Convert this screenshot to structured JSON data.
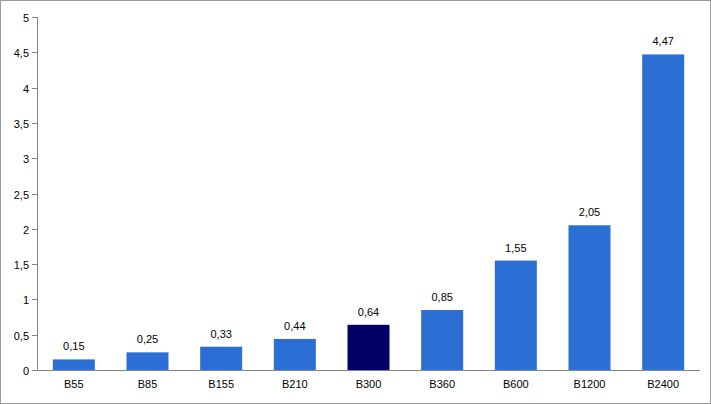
{
  "chart_data": {
    "type": "bar",
    "categories": [
      "B55",
      "B85",
      "B155",
      "B210",
      "B300",
      "B360",
      "B600",
      "B1200",
      "B2400"
    ],
    "values": [
      0.15,
      0.25,
      0.33,
      0.44,
      0.64,
      0.85,
      1.55,
      2.05,
      4.47
    ],
    "value_labels": [
      "0,15",
      "0,25",
      "0,33",
      "0,44",
      "0,64",
      "0,85",
      "1,55",
      "2,05",
      "4,47"
    ],
    "colors": [
      "#2b6fd4",
      "#2b6fd4",
      "#2b6fd4",
      "#2b6fd4",
      "#000066",
      "#2b6fd4",
      "#2b6fd4",
      "#2b6fd4",
      "#2b6fd4"
    ],
    "ylim": [
      0,
      5
    ],
    "yticks": [
      0,
      {
        "value": 0.5,
        "label": "0,5"
      },
      1,
      {
        "value": 1.5,
        "label": "1,5"
      },
      2,
      {
        "value": 2.5,
        "label": "2,5"
      },
      3,
      {
        "value": 3.5,
        "label": "3,5"
      },
      4,
      {
        "value": 4.5,
        "label": "4,5"
      },
      5
    ],
    "grid": false,
    "data_labels": true
  }
}
